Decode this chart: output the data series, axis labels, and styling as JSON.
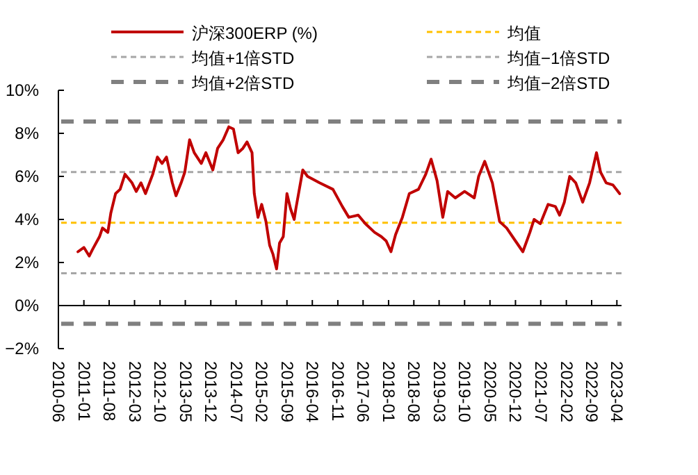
{
  "chart_data": {
    "type": "line",
    "legend": "top",
    "x": [
      "2010-11-12",
      "2011-01-01",
      "2011-02-15",
      "2011-03-14",
      "2011-05-12",
      "2011-06-06",
      "2011-07-21",
      "2011-08-15",
      "2011-09-24",
      "2011-11-01",
      "2011-12-12",
      "2012-02-09",
      "2012-03-15",
      "2012-04-24",
      "2012-06-01",
      "2012-08-01",
      "2012-09-09",
      "2012-10-18",
      "2012-11-24",
      "2013-01-12",
      "2013-02-12",
      "2013-03-27",
      "2013-04-27",
      "2013-06-06",
      "2013-07-15",
      "2013-09-12",
      "2013-10-21",
      "2013-12-18",
      "2014-01-27",
      "2014-03-15",
      "2014-05-01",
      "2014-06-09",
      "2014-07-18",
      "2014-08-27",
      "2014-10-01",
      "2014-11-12",
      "2014-12-01",
      "2015-01-01",
      "2015-02-01",
      "2015-03-09",
      "2015-04-09",
      "2015-05-06",
      "2015-06-06",
      "2015-07-01",
      "2015-08-01",
      "2015-09-01",
      "2015-10-01",
      "2015-11-01",
      "2015-11-15",
      "2016-01-12",
      "2016-02-21",
      "2016-06-01",
      "2016-09-21",
      "2016-12-09",
      "2017-02-01",
      "2017-04-21",
      "2017-06-21",
      "2017-09-06",
      "2017-11-01",
      "2017-12-12",
      "2018-01-21",
      "2018-03-01",
      "2018-04-27",
      "2018-06-24",
      "2018-09-09",
      "2018-11-09",
      "2018-12-24",
      "2019-02-12",
      "2019-04-01",
      "2019-05-12",
      "2019-07-15",
      "2019-10-01",
      "2019-12-21",
      "2020-01-27",
      "2020-03-18",
      "2020-05-21",
      "2020-07-21",
      "2020-09-18",
      "2020-12-01",
      "2021-02-01",
      "2021-04-01",
      "2021-05-06",
      "2021-06-27",
      "2021-09-01",
      "2021-11-01",
      "2021-12-06",
      "2022-01-15",
      "2022-03-01",
      "2022-04-21",
      "2022-06-18",
      "2022-08-15",
      "2022-10-12",
      "2022-11-15",
      "2023-01-01",
      "2023-02-27",
      "2023-04-24"
    ],
    "series": [
      {
        "name": "沪深300ERP (%)",
        "color": "#c00000",
        "values": [
          2.5,
          2.7,
          2.3,
          2.6,
          3.2,
          3.6,
          3.4,
          4.3,
          5.2,
          5.4,
          6.1,
          5.7,
          5.3,
          5.7,
          5.2,
          6.1,
          6.9,
          6.6,
          6.9,
          5.7,
          5.1,
          5.7,
          6.2,
          7.7,
          7.1,
          6.6,
          7.1,
          6.3,
          7.3,
          7.7,
          8.3,
          8.2,
          7.1,
          7.3,
          7.6,
          7.1,
          5.2,
          4.1,
          4.7,
          3.9,
          2.8,
          2.4,
          1.7,
          2.9,
          3.2,
          5.2,
          4.5,
          4.0,
          4.5,
          6.3,
          6.0,
          5.7,
          5.4,
          4.6,
          4.1,
          4.2,
          3.8,
          3.4,
          3.2,
          3.0,
          2.5,
          3.3,
          4.1,
          5.2,
          5.4,
          6.1,
          6.8,
          5.8,
          4.1,
          5.3,
          5.0,
          5.3,
          5.0,
          6.0,
          6.7,
          5.7,
          3.9,
          3.6,
          3.0,
          2.5,
          3.4,
          4.0,
          3.8,
          4.7,
          4.6,
          4.2,
          4.8,
          6.0,
          5.7,
          4.8,
          5.7,
          7.1,
          6.2,
          5.7,
          5.6,
          5.2
        ]
      }
    ],
    "ref_lines": [
      {
        "axis": "y",
        "value": 3.85,
        "label": "均值",
        "color": "#ffc000",
        "line_style": "dotted"
      },
      {
        "axis": "y",
        "value": 6.2,
        "label": "均值+1倍STD",
        "color": "#a6a6a6",
        "line_style": "dotted"
      },
      {
        "axis": "y",
        "value": 1.5,
        "label": "均值−1倍STD",
        "color": "#a6a6a6",
        "line_style": "dotted"
      },
      {
        "axis": "y",
        "value": 8.55,
        "label": "均值+2倍STD",
        "color": "#808080",
        "line_style": "dashed"
      },
      {
        "axis": "y",
        "value": -0.85,
        "label": "均值−2倍STD",
        "color": "#808080",
        "line_style": "dashed"
      }
    ],
    "xlim": [
      "2010-06-01",
      "2023-05-10"
    ],
    "xticks": [
      "2010-06",
      "2011-01",
      "2011-08",
      "2012-03",
      "2012-10",
      "2013-05",
      "2013-12",
      "2014-07",
      "2015-02",
      "2015-09",
      "2016-04",
      "2016-11",
      "2017-06",
      "2018-01",
      "2018-08",
      "2019-03",
      "2019-10",
      "2020-05",
      "2020-12",
      "2021-07",
      "2022-02",
      "2022-09",
      "2023-04"
    ],
    "ylim": [
      -2,
      10
    ],
    "yticks": [
      {
        "value": -2,
        "label": "−2%"
      },
      {
        "value": 0,
        "label": "0%"
      },
      {
        "value": 2,
        "label": "2%"
      },
      {
        "value": 4,
        "label": "4%"
      },
      {
        "value": 6,
        "label": "6%"
      },
      {
        "value": 8,
        "label": "8%"
      },
      {
        "value": 10,
        "label": "10%"
      }
    ]
  }
}
